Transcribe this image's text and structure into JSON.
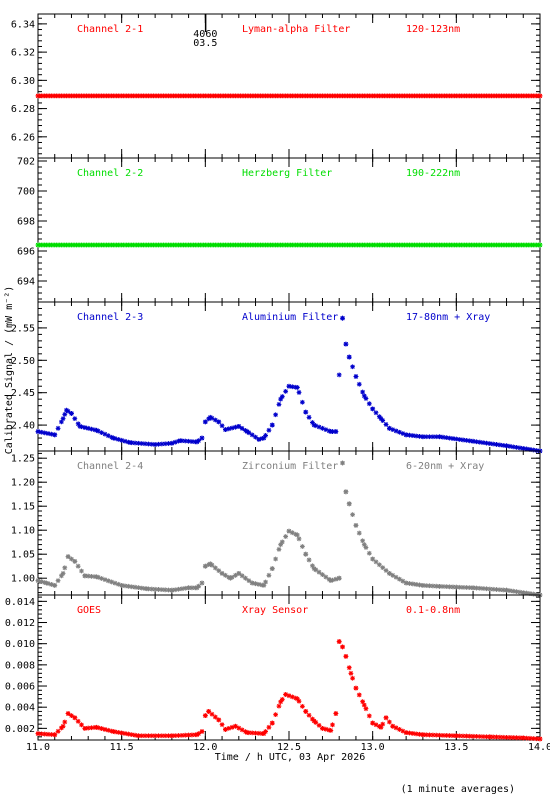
{
  "figure": {
    "ylabel": "Calibrated Signal / (mW m⁻²)",
    "xlabel": "Time / h UTC, 03 Apr 2026",
    "footnote": "(1 minute averages)",
    "marker": {
      "top": "4060",
      "bottom": "03.5",
      "x": 12.0
    },
    "colors": {
      "axis": "#000000",
      "red": "#ff0000",
      "green": "#00dd00",
      "blue": "#0000cc",
      "gray": "#808080"
    }
  },
  "chart_data": [
    {
      "type": "scatter",
      "panel": 1,
      "channel": "Channel 2-1",
      "filter": "Lyman-alpha Filter",
      "band": "120-123nm",
      "color": "#ff0000",
      "xlim": [
        11.0,
        14.0
      ],
      "ylim": [
        6.245,
        6.347
      ],
      "yticks": [
        6.26,
        6.28,
        6.3,
        6.32,
        6.34
      ],
      "ytick_labels": [
        "6.26",
        "6.28",
        "6.30",
        "6.32",
        "6.34"
      ],
      "points": [
        [
          11.0,
          6.289
        ],
        [
          14.0,
          6.289
        ]
      ]
    },
    {
      "type": "scatter",
      "panel": 2,
      "channel": "Channel 2-2",
      "filter": "Herzberg Filter",
      "band": "190-222nm",
      "color": "#00dd00",
      "xlim": [
        11.0,
        14.0
      ],
      "ylim": [
        692.6,
        702.2
      ],
      "yticks": [
        694,
        696,
        698,
        700,
        702
      ],
      "ytick_labels": [
        "694",
        "696",
        "698",
        "700",
        "702"
      ],
      "points": [
        [
          11.0,
          696.4
        ],
        [
          14.0,
          696.4
        ]
      ]
    },
    {
      "type": "scatter",
      "panel": 3,
      "channel": "Channel 2-3",
      "filter": "Aluminium Filter",
      "band": "17-80nm + Xray",
      "color": "#0000cc",
      "xlim": [
        11.0,
        14.0
      ],
      "ylim": [
        2.36,
        2.59
      ],
      "yticks": [
        2.4,
        2.45,
        2.5,
        2.55
      ],
      "ytick_labels": [
        "2.40",
        "2.45",
        "2.50",
        "2.55"
      ],
      "points": [
        [
          11.0,
          2.39
        ],
        [
          11.1,
          2.385
        ],
        [
          11.15,
          2.41
        ],
        [
          11.17,
          2.423
        ],
        [
          11.2,
          2.418
        ],
        [
          11.25,
          2.398
        ],
        [
          11.35,
          2.392
        ],
        [
          11.45,
          2.38
        ],
        [
          11.55,
          2.373
        ],
        [
          11.7,
          2.37
        ],
        [
          11.8,
          2.372
        ],
        [
          11.85,
          2.376
        ],
        [
          11.95,
          2.374
        ],
        [
          11.98,
          2.38
        ],
        [
          12.0,
          2.405
        ],
        [
          12.03,
          2.412
        ],
        [
          12.08,
          2.405
        ],
        [
          12.12,
          2.393
        ],
        [
          12.2,
          2.398
        ],
        [
          12.25,
          2.39
        ],
        [
          12.32,
          2.378
        ],
        [
          12.35,
          2.38
        ],
        [
          12.4,
          2.4
        ],
        [
          12.45,
          2.44
        ],
        [
          12.5,
          2.46
        ],
        [
          12.55,
          2.458
        ],
        [
          12.6,
          2.42
        ],
        [
          12.65,
          2.4
        ],
        [
          12.75,
          2.39
        ],
        [
          12.78,
          2.39
        ],
        [
          12.82,
          2.565
        ],
        [
          12.84,
          2.525
        ],
        [
          12.86,
          2.505
        ],
        [
          12.9,
          2.475
        ],
        [
          12.95,
          2.445
        ],
        [
          13.0,
          2.425
        ],
        [
          13.05,
          2.41
        ],
        [
          13.1,
          2.395
        ],
        [
          13.2,
          2.385
        ],
        [
          13.3,
          2.382
        ],
        [
          13.4,
          2.382
        ],
        [
          13.6,
          2.375
        ],
        [
          13.8,
          2.368
        ],
        [
          14.0,
          2.36
        ]
      ]
    },
    {
      "type": "scatter",
      "panel": 4,
      "channel": "Channel 2-4",
      "filter": "Zirconium Filter",
      "band": "6-20nm + Xray",
      "color": "#808080",
      "xlim": [
        11.0,
        14.0
      ],
      "ylim": [
        0.965,
        1.265
      ],
      "yticks": [
        1.0,
        1.05,
        1.1,
        1.15,
        1.2,
        1.25
      ],
      "ytick_labels": [
        "1.00",
        "1.05",
        "1.10",
        "1.15",
        "1.20",
        "1.25"
      ],
      "points": [
        [
          11.0,
          0.995
        ],
        [
          11.05,
          0.99
        ],
        [
          11.1,
          0.985
        ],
        [
          11.15,
          1.01
        ],
        [
          11.18,
          1.045
        ],
        [
          11.22,
          1.035
        ],
        [
          11.28,
          1.005
        ],
        [
          11.35,
          1.003
        ],
        [
          11.5,
          0.985
        ],
        [
          11.65,
          0.978
        ],
        [
          11.8,
          0.975
        ],
        [
          11.9,
          0.98
        ],
        [
          11.95,
          0.98
        ],
        [
          11.98,
          0.99
        ],
        [
          12.0,
          1.025
        ],
        [
          12.03,
          1.03
        ],
        [
          12.1,
          1.01
        ],
        [
          12.15,
          1.0
        ],
        [
          12.2,
          1.01
        ],
        [
          12.28,
          0.99
        ],
        [
          12.35,
          0.985
        ],
        [
          12.4,
          1.02
        ],
        [
          12.45,
          1.07
        ],
        [
          12.5,
          1.098
        ],
        [
          12.55,
          1.09
        ],
        [
          12.6,
          1.05
        ],
        [
          12.65,
          1.02
        ],
        [
          12.75,
          0.995
        ],
        [
          12.8,
          1.0
        ],
        [
          12.82,
          1.24
        ],
        [
          12.84,
          1.18
        ],
        [
          12.86,
          1.155
        ],
        [
          12.9,
          1.11
        ],
        [
          12.95,
          1.07
        ],
        [
          13.0,
          1.04
        ],
        [
          13.1,
          1.01
        ],
        [
          13.2,
          0.99
        ],
        [
          13.3,
          0.985
        ],
        [
          13.4,
          0.983
        ],
        [
          13.6,
          0.98
        ],
        [
          13.8,
          0.975
        ],
        [
          14.0,
          0.965
        ]
      ]
    },
    {
      "type": "scatter",
      "panel": 5,
      "channel": "GOES",
      "filter": "Xray Sensor",
      "band": "0.1-0.8nm",
      "color": "#ff0000",
      "xlim": [
        11.0,
        14.0
      ],
      "ylim": [
        0.0009,
        0.0146
      ],
      "yticks": [
        0.002,
        0.004,
        0.006,
        0.008,
        0.01,
        0.012,
        0.014
      ],
      "ytick_labels": [
        "0.002",
        "0.004",
        "0.006",
        "0.008",
        "0.010",
        "0.012",
        "0.014"
      ],
      "points": [
        [
          11.0,
          0.0015
        ],
        [
          11.1,
          0.0014
        ],
        [
          11.15,
          0.0022
        ],
        [
          11.18,
          0.0034
        ],
        [
          11.22,
          0.003
        ],
        [
          11.28,
          0.002
        ],
        [
          11.35,
          0.0021
        ],
        [
          11.45,
          0.0017
        ],
        [
          11.6,
          0.0013
        ],
        [
          11.8,
          0.0013
        ],
        [
          11.95,
          0.0014
        ],
        [
          11.98,
          0.0017
        ],
        [
          12.0,
          0.0032
        ],
        [
          12.02,
          0.0036
        ],
        [
          12.08,
          0.0028
        ],
        [
          12.12,
          0.0019
        ],
        [
          12.18,
          0.0022
        ],
        [
          12.25,
          0.0016
        ],
        [
          12.35,
          0.0015
        ],
        [
          12.4,
          0.0025
        ],
        [
          12.45,
          0.0045
        ],
        [
          12.48,
          0.0052
        ],
        [
          12.55,
          0.0048
        ],
        [
          12.6,
          0.0036
        ],
        [
          12.65,
          0.0027
        ],
        [
          12.7,
          0.002
        ],
        [
          12.75,
          0.0018
        ],
        [
          12.78,
          0.0034
        ],
        [
          12.8,
          0.0102
        ],
        [
          12.82,
          0.0097
        ],
        [
          12.84,
          0.0088
        ],
        [
          12.87,
          0.0072
        ],
        [
          12.9,
          0.0058
        ],
        [
          12.95,
          0.0042
        ],
        [
          13.0,
          0.0025
        ],
        [
          13.05,
          0.0021
        ],
        [
          13.08,
          0.003
        ],
        [
          13.12,
          0.0022
        ],
        [
          13.2,
          0.0016
        ],
        [
          13.3,
          0.0014
        ],
        [
          13.5,
          0.0013
        ],
        [
          13.7,
          0.0012
        ],
        [
          13.9,
          0.0011
        ],
        [
          14.0,
          0.001
        ]
      ]
    }
  ],
  "xaxis": {
    "xlim": [
      11.0,
      14.0
    ],
    "ticks": [
      11.0,
      11.5,
      12.0,
      12.5,
      13.0,
      13.5,
      14.0
    ],
    "tick_labels": [
      "11.0",
      "11.5",
      "12.0",
      "12.5",
      "13.0",
      "13.5",
      "14.0"
    ]
  }
}
